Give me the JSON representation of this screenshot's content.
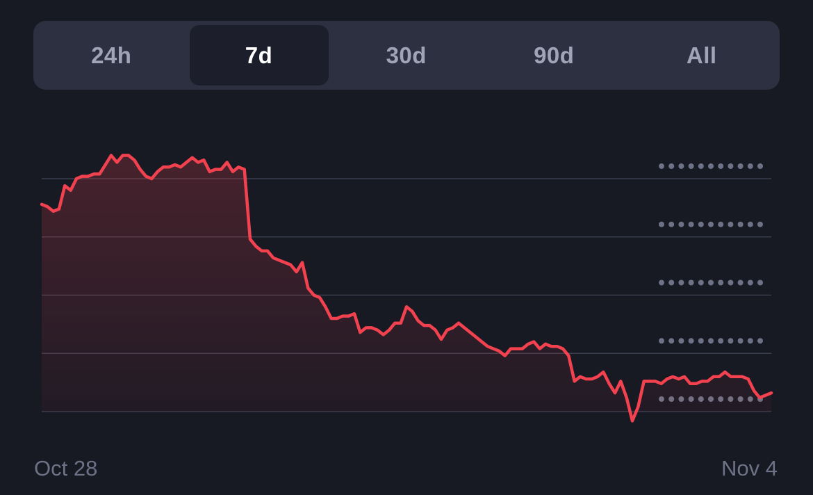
{
  "tabs": [
    {
      "label": "24h",
      "active": false
    },
    {
      "label": "7d",
      "active": true
    },
    {
      "label": "30d",
      "active": false
    },
    {
      "label": "90d",
      "active": false
    },
    {
      "label": "All",
      "active": false
    }
  ],
  "colors": {
    "background": "#171923",
    "line": "#f2424f",
    "gridline": "#3a3d4c",
    "dots": "#6e7286"
  },
  "chart_data": {
    "type": "area",
    "x_start_label": "Oct 28",
    "x_end_label": "Nov 4",
    "ylim": [
      0,
      100
    ],
    "gridlines": [
      0,
      25,
      50,
      75,
      100
    ],
    "values": [
      89,
      88,
      86,
      87,
      97,
      95,
      100,
      101,
      101,
      102,
      102,
      106,
      110,
      107,
      110,
      110,
      108,
      104,
      101,
      100,
      103,
      105,
      105,
      106,
      105,
      107,
      109,
      107,
      108,
      103,
      104,
      104,
      107,
      103,
      105,
      104,
      74,
      71,
      69,
      69,
      66,
      65,
      64,
      63,
      60,
      64,
      53,
      50,
      49,
      45,
      40,
      40,
      41,
      41,
      42,
      34,
      36,
      36,
      35,
      33,
      35,
      38,
      38,
      45,
      43,
      39,
      37,
      37,
      35,
      31,
      35,
      36,
      38,
      36,
      34,
      32,
      30,
      28,
      27,
      26,
      24,
      27,
      27,
      27,
      29,
      30,
      27,
      29,
      28,
      28,
      27,
      24,
      13,
      15,
      14,
      14,
      15,
      17,
      12,
      8,
      13,
      6,
      -4,
      2,
      13,
      13,
      13,
      12,
      14,
      15,
      14,
      15,
      12,
      12,
      13,
      13,
      15,
      15,
      17,
      15,
      15,
      15,
      14,
      9,
      6,
      7,
      8
    ]
  }
}
